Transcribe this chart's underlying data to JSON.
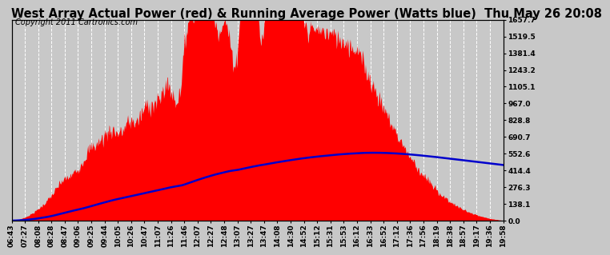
{
  "title": "West Array Actual Power (red) & Running Average Power (Watts blue)  Thu May 26 20:08",
  "copyright": "Copyright 2011 Cartronics.com",
  "y_ticks": [
    0.0,
    138.1,
    276.3,
    414.4,
    552.6,
    690.7,
    828.8,
    967.0,
    1105.1,
    1243.2,
    1381.4,
    1519.5,
    1657.7
  ],
  "x_labels": [
    "06:43",
    "07:27",
    "08:08",
    "08:28",
    "08:47",
    "09:06",
    "09:25",
    "09:44",
    "10:05",
    "10:26",
    "10:47",
    "11:07",
    "11:26",
    "11:46",
    "12:07",
    "12:27",
    "12:48",
    "13:07",
    "13:27",
    "13:47",
    "14:08",
    "14:30",
    "14:52",
    "15:12",
    "15:31",
    "15:53",
    "16:12",
    "16:33",
    "16:52",
    "17:12",
    "17:36",
    "17:56",
    "18:19",
    "18:38",
    "18:57",
    "19:17",
    "19:36",
    "19:58"
  ],
  "background_color": "#c8c8c8",
  "plot_bg_color": "#c8c8c8",
  "grid_color": "#ffffff",
  "fill_color": "#ff0000",
  "line_color": "#0000cc",
  "title_color": "#000000",
  "title_fontsize": 10.5,
  "copyright_fontsize": 7,
  "tick_label_fontsize": 6.5,
  "ymax": 1657.7
}
